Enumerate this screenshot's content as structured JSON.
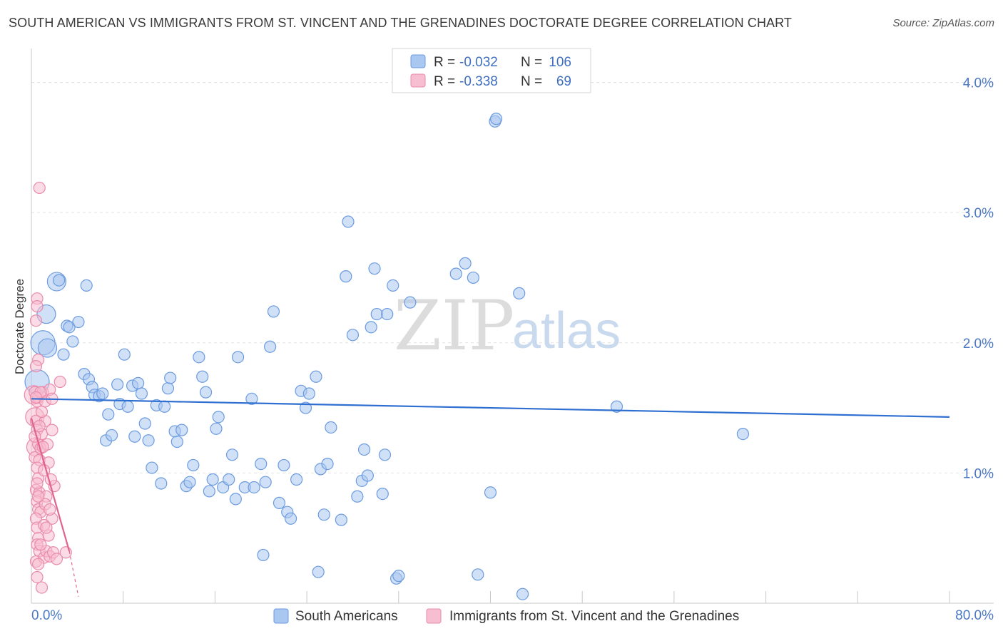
{
  "title": "SOUTH AMERICAN VS IMMIGRANTS FROM ST. VINCENT AND THE GRENADINES DOCTORATE DEGREE CORRELATION CHART",
  "source": "Source: ZipAtlas.com",
  "watermark": {
    "zip": "ZIP",
    "atlas": "atlas"
  },
  "legend_top": {
    "rows": [
      {
        "r_label": "R =",
        "r_value": "-0.032",
        "n_label": "N =",
        "n_value": "106",
        "color": "#a9c7f0",
        "stroke": "#6b9be0"
      },
      {
        "r_label": "R =",
        "r_value": "-0.338",
        "n_label": "N =",
        "n_value": "69",
        "color": "#f7bdd0",
        "stroke": "#e98aab"
      }
    ]
  },
  "legend_bottom": [
    {
      "label": "South Americans",
      "color": "#a9c7f0",
      "stroke": "#6b9be0"
    },
    {
      "label": "Immigrants from St. Vincent and the Grenadines",
      "color": "#f7bdd0",
      "stroke": "#e98aab"
    }
  ],
  "chart_data": {
    "type": "scatter",
    "title": "SOUTH AMERICAN VS IMMIGRANTS FROM ST. VINCENT AND THE GRENADINES DOCTORATE DEGREE CORRELATION CHART",
    "xlabel": "",
    "ylabel": "Doctorate Degree",
    "xlim": [
      0,
      80
    ],
    "ylim": [
      0,
      4.2
    ],
    "x_tick_labels": [
      "0.0%",
      "80.0%"
    ],
    "y_ticks": [
      1,
      2,
      3,
      4
    ],
    "y_tick_labels": [
      "1.0%",
      "2.0%",
      "3.0%",
      "4.0%"
    ],
    "grid": true,
    "legend_position": "top-center",
    "series": [
      {
        "name": "South Americans",
        "color": "#a9c7f0",
        "stroke": "#6b9be0",
        "line_color": "#2f6fd1",
        "trend": [
          [
            0,
            1.57
          ],
          [
            80,
            1.43
          ]
        ],
        "points": [
          [
            0.5,
            1.7,
            3
          ],
          [
            1,
            2.0,
            3
          ],
          [
            1.3,
            2.22,
            2
          ],
          [
            1.4,
            1.96,
            2
          ],
          [
            2.2,
            2.47,
            2
          ],
          [
            2.4,
            2.48,
            1
          ],
          [
            2.8,
            1.91,
            1
          ],
          [
            3.1,
            2.13,
            1
          ],
          [
            3.3,
            2.12,
            1
          ],
          [
            3.6,
            2.01,
            1
          ],
          [
            4.1,
            2.16,
            1
          ],
          [
            4.6,
            1.76,
            1
          ],
          [
            4.8,
            2.44,
            1
          ],
          [
            5.0,
            1.72,
            1
          ],
          [
            5.3,
            1.66,
            1
          ],
          [
            5.5,
            1.6,
            1
          ],
          [
            5.9,
            1.59,
            1
          ],
          [
            6.2,
            1.61,
            1
          ],
          [
            6.5,
            1.25,
            1
          ],
          [
            6.7,
            1.45,
            1
          ],
          [
            7.0,
            1.29,
            1
          ],
          [
            7.5,
            1.68,
            1
          ],
          [
            7.7,
            1.53,
            1
          ],
          [
            8.1,
            1.91,
            1
          ],
          [
            8.4,
            1.51,
            1
          ],
          [
            8.8,
            1.67,
            1
          ],
          [
            9.0,
            1.28,
            1
          ],
          [
            9.3,
            1.69,
            1
          ],
          [
            9.6,
            1.61,
            1
          ],
          [
            9.9,
            1.38,
            1
          ],
          [
            10.2,
            1.25,
            1
          ],
          [
            10.5,
            1.04,
            1
          ],
          [
            10.9,
            1.52,
            1
          ],
          [
            11.3,
            0.92,
            1
          ],
          [
            11.6,
            1.51,
            1
          ],
          [
            11.9,
            1.65,
            1
          ],
          [
            12.1,
            1.73,
            1
          ],
          [
            12.5,
            1.32,
            1
          ],
          [
            12.7,
            1.24,
            1
          ],
          [
            13.1,
            1.33,
            1
          ],
          [
            13.5,
            0.9,
            1
          ],
          [
            13.8,
            0.93,
            1
          ],
          [
            14.1,
            1.06,
            1
          ],
          [
            14.6,
            1.89,
            1
          ],
          [
            14.9,
            1.74,
            1
          ],
          [
            15.2,
            1.62,
            1
          ],
          [
            15.5,
            0.86,
            1
          ],
          [
            15.8,
            0.95,
            1
          ],
          [
            16.1,
            1.34,
            1
          ],
          [
            16.3,
            1.43,
            1
          ],
          [
            16.7,
            0.89,
            1
          ],
          [
            17.2,
            0.95,
            1
          ],
          [
            17.5,
            1.14,
            1
          ],
          [
            17.8,
            0.8,
            1
          ],
          [
            18.0,
            1.89,
            1
          ],
          [
            18.6,
            0.89,
            1
          ],
          [
            19.2,
            1.57,
            1
          ],
          [
            19.4,
            0.89,
            1
          ],
          [
            20.0,
            1.07,
            1
          ],
          [
            20.4,
            0.93,
            1
          ],
          [
            20.8,
            1.97,
            1
          ],
          [
            21.1,
            2.24,
            1
          ],
          [
            21.6,
            0.77,
            1
          ],
          [
            22.0,
            1.06,
            1
          ],
          [
            22.3,
            0.7,
            1
          ],
          [
            22.6,
            0.65,
            1
          ],
          [
            23.1,
            0.95,
            1
          ],
          [
            23.5,
            1.63,
            1
          ],
          [
            23.9,
            1.5,
            1
          ],
          [
            24.2,
            1.61,
            1
          ],
          [
            24.8,
            1.74,
            1
          ],
          [
            25.2,
            1.03,
            1
          ],
          [
            25.5,
            0.68,
            1
          ],
          [
            25.8,
            1.07,
            1
          ],
          [
            26.1,
            1.35,
            1
          ],
          [
            25.0,
            0.24,
            1
          ],
          [
            27.0,
            0.64,
            1
          ],
          [
            27.4,
            2.51,
            1
          ],
          [
            27.6,
            2.93,
            1
          ],
          [
            28.0,
            2.06,
            1
          ],
          [
            28.4,
            0.82,
            1
          ],
          [
            28.8,
            0.94,
            1
          ],
          [
            29.0,
            1.18,
            1
          ],
          [
            29.3,
            0.98,
            1
          ],
          [
            29.6,
            2.12,
            1
          ],
          [
            29.9,
            2.57,
            1
          ],
          [
            30.1,
            2.22,
            1
          ],
          [
            30.6,
            0.84,
            1
          ],
          [
            30.8,
            1.14,
            1
          ],
          [
            31.0,
            2.22,
            1
          ],
          [
            31.5,
            2.44,
            1
          ],
          [
            31.8,
            0.19,
            1
          ],
          [
            32.0,
            0.21,
            1
          ],
          [
            33.0,
            2.31,
            1
          ],
          [
            37.0,
            2.53,
            1
          ],
          [
            37.8,
            2.61,
            1
          ],
          [
            38.5,
            2.5,
            1
          ],
          [
            38.9,
            0.22,
            1
          ],
          [
            40.0,
            0.85,
            1
          ],
          [
            40.4,
            3.7,
            1
          ],
          [
            40.5,
            3.72,
            1
          ],
          [
            42.5,
            2.38,
            1
          ],
          [
            42.8,
            0.07,
            1
          ],
          [
            20.2,
            0.37,
            1
          ],
          [
            51.0,
            1.51,
            1
          ],
          [
            62.0,
            1.3,
            1
          ]
        ]
      },
      {
        "name": "Immigrants from St. Vincent and the Grenadines",
        "color": "#f7bdd0",
        "stroke": "#e98aab",
        "line_color": "#e0638f",
        "trend": [
          [
            0,
            1.42
          ],
          [
            3.3,
            0.4
          ]
        ],
        "trend_dashed": [
          [
            3.3,
            0.4
          ],
          [
            4.1,
            0.05
          ]
        ],
        "points": [
          [
            0.2,
            1.6,
            2
          ],
          [
            0.3,
            1.43,
            2
          ],
          [
            0.4,
            1.2,
            2
          ],
          [
            0.5,
            2.34,
            1
          ],
          [
            0.6,
            1.87,
            1
          ],
          [
            0.7,
            3.19,
            1
          ],
          [
            0.4,
            1.82,
            1
          ],
          [
            0.3,
            1.62,
            1
          ],
          [
            0.5,
            1.55,
            1
          ],
          [
            0.6,
            1.58,
            1
          ],
          [
            0.4,
            1.4,
            1
          ],
          [
            0.5,
            1.33,
            1
          ],
          [
            0.3,
            1.12,
            1
          ],
          [
            0.6,
            1.22,
            1
          ],
          [
            0.8,
            1.19,
            1
          ],
          [
            1.0,
            1.62,
            1
          ],
          [
            1.2,
            1.55,
            1
          ],
          [
            0.9,
            1.3,
            1
          ],
          [
            0.7,
            1.1,
            1
          ],
          [
            0.5,
            1.04,
            1
          ],
          [
            0.6,
            0.96,
            1
          ],
          [
            0.4,
            0.87,
            1
          ],
          [
            0.7,
            0.85,
            1
          ],
          [
            0.5,
            0.78,
            1
          ],
          [
            0.6,
            0.72,
            1
          ],
          [
            0.8,
            0.7,
            1
          ],
          [
            0.4,
            0.65,
            1
          ],
          [
            0.5,
            0.58,
            1
          ],
          [
            0.6,
            0.5,
            1
          ],
          [
            0.5,
            0.45,
            1
          ],
          [
            0.7,
            0.4,
            1
          ],
          [
            0.4,
            0.32,
            1
          ],
          [
            0.5,
            0.2,
            1
          ],
          [
            0.9,
            0.12,
            1
          ],
          [
            1.1,
            0.35,
            1
          ],
          [
            1.3,
            0.4,
            1
          ],
          [
            1.5,
            0.52,
            1
          ],
          [
            1.6,
            0.36,
            1
          ],
          [
            1.8,
            0.65,
            1
          ],
          [
            2.0,
            0.9,
            1
          ],
          [
            1.7,
            0.95,
            1
          ],
          [
            1.5,
            1.08,
            1
          ],
          [
            1.3,
            0.82,
            1
          ],
          [
            1.1,
            0.6,
            1
          ],
          [
            1.4,
            1.22,
            1
          ],
          [
            1.2,
            1.4,
            1
          ],
          [
            1.6,
            1.64,
            1
          ],
          [
            1.8,
            1.33,
            1
          ],
          [
            2.5,
            1.7,
            1
          ],
          [
            1.9,
            0.39,
            1
          ],
          [
            3.0,
            0.39,
            1
          ],
          [
            0.5,
            2.28,
            1
          ],
          [
            0.4,
            2.17,
            1
          ],
          [
            1.0,
            1.2,
            1
          ],
          [
            0.8,
            0.45,
            1
          ],
          [
            1.2,
            0.76,
            1
          ],
          [
            0.6,
            0.3,
            1
          ],
          [
            0.3,
            1.28,
            1
          ],
          [
            0.9,
            1.47,
            1
          ],
          [
            1.1,
            1.02,
            1
          ],
          [
            0.7,
            1.36,
            1
          ],
          [
            0.5,
            0.92,
            1
          ],
          [
            1.6,
            0.72,
            1
          ],
          [
            0.8,
            1.62,
            1
          ],
          [
            0.4,
            1.58,
            1
          ],
          [
            1.3,
            0.58,
            1
          ],
          [
            0.6,
            0.82,
            1
          ],
          [
            2.2,
            0.34,
            1
          ],
          [
            1.8,
            1.57,
            1
          ]
        ]
      }
    ]
  }
}
